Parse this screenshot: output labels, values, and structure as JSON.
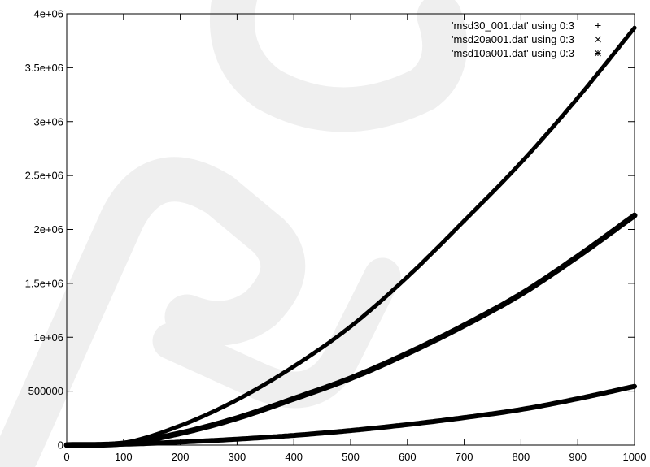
{
  "chart_data": {
    "type": "line",
    "xlim": [
      0,
      1000
    ],
    "ylim": [
      0,
      4000000
    ],
    "x_ticks": [
      0,
      100,
      200,
      300,
      400,
      500,
      600,
      700,
      800,
      900,
      1000
    ],
    "x_tick_labels": [
      "0",
      "100",
      "200",
      "300",
      "400",
      "500",
      "600",
      "700",
      "800",
      "900",
      "1000"
    ],
    "y_ticks": [
      0,
      500000,
      1000000,
      1500000,
      2000000,
      2500000,
      3000000,
      3500000,
      4000000
    ],
    "y_tick_labels": [
      "0",
      "500000",
      "1e+06",
      "1.5e+06",
      "2e+06",
      "2.5e+06",
      "3e+06",
      "3.5e+06",
      "4e+06"
    ],
    "grid": false,
    "legend_position": "top-right",
    "x": [
      0,
      100,
      200,
      300,
      400,
      500,
      600,
      700,
      800,
      900,
      1000
    ],
    "series": [
      {
        "name": "'msd30_001.dat' using 0:3",
        "marker": "+",
        "values": [
          0,
          20000,
          180000,
          420000,
          730000,
          1100000,
          1560000,
          2080000,
          2620000,
          3220000,
          3870000
        ]
      },
      {
        "name": "'msd20a001.dat' using 0:3",
        "marker": "x",
        "values": [
          0,
          15000,
          110000,
          250000,
          430000,
          620000,
          850000,
          1110000,
          1400000,
          1750000,
          2130000
        ]
      },
      {
        "name": "'msd10a001.dat' using 0:3",
        "marker": "*",
        "values": [
          0,
          8000,
          28000,
          55000,
          90000,
          135000,
          190000,
          255000,
          330000,
          430000,
          545000
        ]
      }
    ],
    "watermark": {
      "text": "PRO",
      "color": "#efefef"
    }
  }
}
